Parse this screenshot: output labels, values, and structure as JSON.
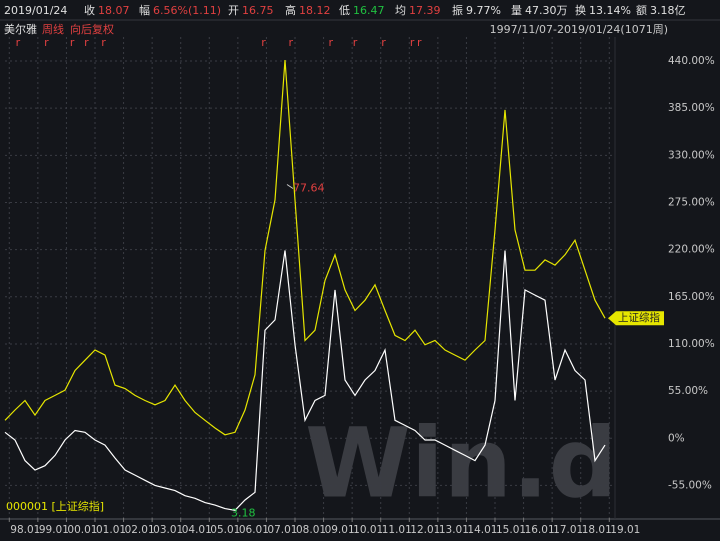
{
  "header": {
    "date": "2019/01/24",
    "items": [
      {
        "label": "收",
        "value": "18.07"
      },
      {
        "label": "幅",
        "value": "6.56%(1.11)"
      },
      {
        "label": "开",
        "value": "16.75"
      },
      {
        "label": "高",
        "value": "18.12"
      },
      {
        "label": "低",
        "value": "16.47"
      },
      {
        "label": "均",
        "value": "17.39"
      },
      {
        "label": "振",
        "value": "9.77%"
      },
      {
        "label": "量",
        "value": "47.30万"
      },
      {
        "label": "换",
        "value": "13.14%"
      },
      {
        "label": "额",
        "value": "3.18亿"
      }
    ],
    "period": "周线",
    "adjust": "向后复权",
    "range": "1997/11/07-2019/01/24(1071周)"
  },
  "chart_data": {
    "type": "line",
    "x": [
      1997.85,
      1998.2,
      1998.55,
      1998.9,
      1999.25,
      1999.6,
      1999.95,
      2000.3,
      2000.65,
      2001.0,
      2001.35,
      2001.7,
      2002.05,
      2002.4,
      2002.75,
      2003.1,
      2003.45,
      2003.8,
      2004.15,
      2004.5,
      2004.85,
      2005.2,
      2005.55,
      2005.9,
      2006.25,
      2006.6,
      2006.95,
      2007.3,
      2007.65,
      2008.0,
      2008.35,
      2008.7,
      2009.05,
      2009.4,
      2009.75,
      2010.1,
      2010.45,
      2010.8,
      2011.15,
      2011.5,
      2011.85,
      2012.2,
      2012.55,
      2012.9,
      2013.25,
      2013.6,
      2013.95,
      2014.3,
      2014.65,
      2015.0,
      2015.35,
      2015.7,
      2016.05,
      2016.4,
      2016.75,
      2017.1,
      2017.45,
      2017.8,
      2018.15,
      2018.5,
      2018.85
    ],
    "series": [
      {
        "name": "美尔雅",
        "color": "#ffffff",
        "values": [
          7,
          -2,
          -26,
          -37,
          -32,
          -20,
          -2,
          9,
          7,
          -2,
          -8,
          -23,
          -37,
          -43,
          -49,
          -55,
          -58,
          -61,
          -67,
          -70,
          -75,
          -78,
          -82,
          -84,
          -72,
          -63,
          126,
          138,
          219,
          109,
          21,
          44,
          50,
          173,
          68,
          50,
          68,
          79,
          103,
          21,
          15,
          9,
          -2,
          -2,
          -8,
          -14,
          -20,
          -26,
          -8,
          44,
          219,
          44,
          173,
          167,
          161,
          68,
          103,
          79,
          68,
          -26,
          -8
        ]
      },
      {
        "name": "上证综指",
        "color": "#e6e600",
        "values": [
          21,
          33,
          44,
          27,
          44,
          50,
          56,
          79,
          91,
          103,
          97,
          62,
          58,
          50,
          44,
          39,
          44,
          62,
          44,
          30,
          21,
          12,
          4,
          7,
          33,
          74,
          219,
          278,
          441,
          278,
          114,
          126,
          184,
          214,
          173,
          149,
          161,
          179,
          149,
          120,
          114,
          126,
          109,
          114,
          103,
          97,
          91,
          103,
          114,
          243,
          383,
          243,
          196,
          196,
          208,
          202,
          214,
          231,
          196,
          161,
          140
        ]
      }
    ],
    "xlim": [
      1997.85,
      2019.2
    ],
    "xticks": [
      {
        "value": 1998,
        "label": "98.01"
      },
      {
        "value": 1999,
        "label": "99.01"
      },
      {
        "value": 2000,
        "label": "00.01"
      },
      {
        "value": 2001,
        "label": "01.01"
      },
      {
        "value": 2002,
        "label": "02.01"
      },
      {
        "value": 2003,
        "label": "03.01"
      },
      {
        "value": 2004,
        "label": "04.01"
      },
      {
        "value": 2005,
        "label": "05.01"
      },
      {
        "value": 2006,
        "label": "06.01"
      },
      {
        "value": 2007,
        "label": "07.01"
      },
      {
        "value": 2008,
        "label": "08.01"
      },
      {
        "value": 2009,
        "label": "09.01"
      },
      {
        "value": 2010,
        "label": "10.01"
      },
      {
        "value": 2011,
        "label": "11.01"
      },
      {
        "value": 2012,
        "label": "12.01"
      },
      {
        "value": 2013,
        "label": "13.01"
      },
      {
        "value": 2014,
        "label": "14.01"
      },
      {
        "value": 2015,
        "label": "15.01"
      },
      {
        "value": 2016,
        "label": "16.01"
      },
      {
        "value": 2017,
        "label": "17.01"
      },
      {
        "value": 2018,
        "label": "18.01"
      },
      {
        "value": 2019,
        "label": "19.01"
      }
    ],
    "ylim": [
      -93,
      468
    ],
    "yticks": [
      {
        "value": 440,
        "label": "440.00%"
      },
      {
        "value": 385,
        "label": "385.00%"
      },
      {
        "value": 330,
        "label": "330.00%"
      },
      {
        "value": 275,
        "label": "275.00%"
      },
      {
        "value": 220,
        "label": "220.00%"
      },
      {
        "value": 165,
        "label": "165.00%"
      },
      {
        "value": 110,
        "label": "110.00%"
      },
      {
        "value": 55,
        "label": "55.00%"
      },
      {
        "value": 0,
        "label": "0%"
      },
      {
        "value": -55,
        "label": "-55.00%"
      }
    ],
    "grid": true,
    "annotations": {
      "high": "77.64",
      "low": "3.18",
      "legend": "000001 [上证综指]",
      "watermark": "Win.d"
    },
    "markers": {
      "label": "r",
      "x": [
        1998.3,
        1999.3,
        2000.2,
        2000.7,
        2001.3,
        2006.9,
        2007.85,
        2009.25,
        2010.1,
        2011.1,
        2012.1,
        2012.35
      ]
    }
  }
}
